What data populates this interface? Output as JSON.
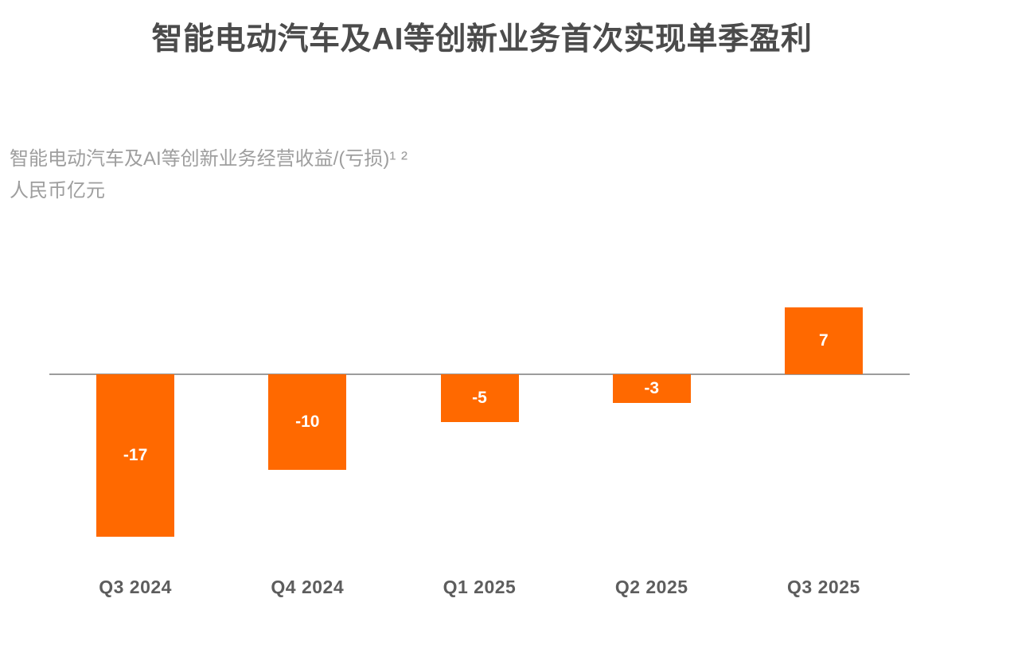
{
  "header": {
    "title": "智能电动汽车及AI等创新业务首次实现单季盈利"
  },
  "chart_data": {
    "type": "bar",
    "title": "智能电动汽车及AI等创新业务首次实现单季盈利",
    "subtitle": "智能电动汽车及AI等创新业务经营收益/(亏损)¹ ²",
    "unit_label": "人民币亿元",
    "categories": [
      "Q3 2024",
      "Q4 2024",
      "Q1 2025",
      "Q2 2025",
      "Q3 2025"
    ],
    "values": [
      -17,
      -10,
      -5,
      -3,
      7
    ],
    "bar_labels": [
      "-17",
      "-10",
      "-5",
      "-3",
      "7"
    ],
    "bar_color": "#FF6900",
    "bar_label_color": "#FFFFFF",
    "axis_line_color": "#9C9C9C",
    "title_color": "#4B4B4B",
    "subtitle_color": "#9E9E9E",
    "category_label_color": "#5D5D5D",
    "ylim": [
      -18,
      8
    ],
    "grid": false,
    "zero_baseline": true,
    "legend": "none",
    "value_labels_position": "inside-center"
  }
}
